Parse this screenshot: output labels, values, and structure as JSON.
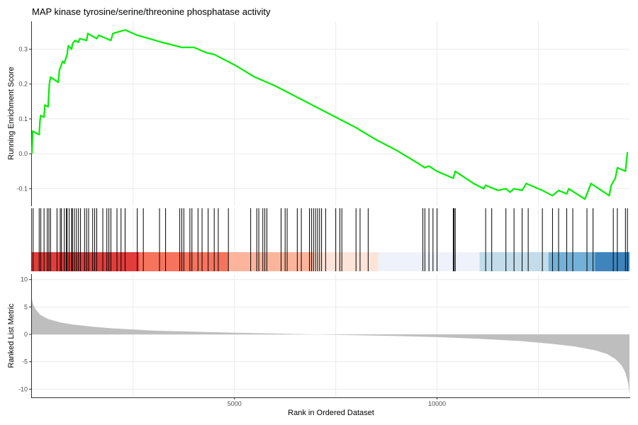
{
  "chart_data": {
    "type": "line",
    "title": "MAP kinase tyrosine/serine/threonine phosphatase activity",
    "xlabel": "Rank in Ordered Dataset",
    "xlim": [
      0,
      14750
    ],
    "x_ticks": [
      5000,
      10000
    ],
    "x_tick_labels": [
      "5000",
      "10000"
    ],
    "grid": true,
    "colors": {
      "es_line": "#00ee00",
      "hits": "#000000",
      "metric_fill": "#bebebe",
      "grid": "#ebebeb"
    },
    "panels": {
      "running_es": {
        "ylabel": "Running Enrichment Score",
        "ylim": [
          -0.15,
          0.38
        ],
        "y_ticks": [
          -0.1,
          0.0,
          0.1,
          0.2,
          0.3
        ],
        "y_tick_labels": [
          "-0.1",
          "0.0",
          "0.1",
          "0.2",
          "0.3"
        ],
        "points": [
          [
            0,
            0.0
          ],
          [
            20,
            0.065
          ],
          [
            180,
            0.055
          ],
          [
            200,
            0.095
          ],
          [
            220,
            0.11
          ],
          [
            300,
            0.105
          ],
          [
            320,
            0.14
          ],
          [
            400,
            0.135
          ],
          [
            430,
            0.2
          ],
          [
            460,
            0.22
          ],
          [
            650,
            0.205
          ],
          [
            680,
            0.24
          ],
          [
            760,
            0.265
          ],
          [
            800,
            0.26
          ],
          [
            870,
            0.285
          ],
          [
            900,
            0.31
          ],
          [
            980,
            0.3
          ],
          [
            1000,
            0.315
          ],
          [
            1060,
            0.325
          ],
          [
            1150,
            0.32
          ],
          [
            1180,
            0.33
          ],
          [
            1350,
            0.325
          ],
          [
            1380,
            0.345
          ],
          [
            1600,
            0.33
          ],
          [
            1650,
            0.34
          ],
          [
            1950,
            0.325
          ],
          [
            2000,
            0.345
          ],
          [
            2300,
            0.355
          ],
          [
            2600,
            0.34
          ],
          [
            3200,
            0.32
          ],
          [
            3700,
            0.305
          ],
          [
            4000,
            0.305
          ],
          [
            4300,
            0.29
          ],
          [
            4500,
            0.285
          ],
          [
            5000,
            0.255
          ],
          [
            5500,
            0.22
          ],
          [
            6000,
            0.195
          ],
          [
            6500,
            0.165
          ],
          [
            7000,
            0.135
          ],
          [
            7500,
            0.105
          ],
          [
            8000,
            0.075
          ],
          [
            8500,
            0.04
          ],
          [
            9000,
            0.01
          ],
          [
            9500,
            -0.025
          ],
          [
            9700,
            -0.04
          ],
          [
            9800,
            -0.035
          ],
          [
            10000,
            -0.05
          ],
          [
            10400,
            -0.07
          ],
          [
            10450,
            -0.05
          ],
          [
            10900,
            -0.085
          ],
          [
            11150,
            -0.1
          ],
          [
            11200,
            -0.09
          ],
          [
            11500,
            -0.105
          ],
          [
            11700,
            -0.1
          ],
          [
            11800,
            -0.11
          ],
          [
            11900,
            -0.1
          ],
          [
            12100,
            -0.105
          ],
          [
            12200,
            -0.085
          ],
          [
            12600,
            -0.105
          ],
          [
            12850,
            -0.12
          ],
          [
            13000,
            -0.105
          ],
          [
            13200,
            -0.115
          ],
          [
            13250,
            -0.1
          ],
          [
            13650,
            -0.13
          ],
          [
            13700,
            -0.115
          ],
          [
            13800,
            -0.085
          ],
          [
            14250,
            -0.12
          ],
          [
            14300,
            -0.09
          ],
          [
            14400,
            -0.07
          ],
          [
            14450,
            -0.04
          ],
          [
            14650,
            -0.05
          ],
          [
            14700,
            0.005
          ]
        ]
      },
      "hits": {
        "positions": [
          30,
          180,
          220,
          300,
          380,
          420,
          460,
          620,
          700,
          730,
          800,
          850,
          870,
          920,
          980,
          1000,
          1050,
          1100,
          1150,
          1200,
          1300,
          1350,
          1400,
          1500,
          1550,
          1600,
          1750,
          1850,
          1900,
          1950,
          2100,
          2200,
          2300,
          2600,
          2750,
          3150,
          3300,
          3650,
          3700,
          3750,
          3900,
          3950,
          4100,
          4200,
          4350,
          4500,
          4600,
          4850,
          5400,
          5550,
          5600,
          5700,
          5750,
          5800,
          6150,
          6250,
          6300,
          6550,
          6650,
          6850,
          6900,
          6950,
          7000,
          7050,
          7100,
          7150,
          7250,
          7500,
          7600,
          7650,
          8000,
          8100,
          8300,
          9650,
          9700,
          9800,
          9900,
          10000,
          10400,
          10420,
          10450,
          11200,
          11350,
          11700,
          11900,
          12100,
          12250,
          12600,
          12850,
          13000,
          13200,
          13350,
          13700,
          13850,
          14350,
          14450,
          14650,
          14700
        ],
        "color_bands": [
          {
            "from": 0,
            "to": 2650,
            "color": "#e03d3b"
          },
          {
            "from": 2650,
            "to": 4850,
            "color": "#f6735d"
          },
          {
            "from": 4850,
            "to": 6950,
            "color": "#fcb59c"
          },
          {
            "from": 6950,
            "to": 8550,
            "color": "#fde4d9"
          },
          {
            "from": 8550,
            "to": 11050,
            "color": "#eef3fb"
          },
          {
            "from": 11050,
            "to": 12750,
            "color": "#c2dcea"
          },
          {
            "from": 12750,
            "to": 13900,
            "color": "#74b1d8"
          },
          {
            "from": 13900,
            "to": 14750,
            "color": "#3f85bc"
          }
        ]
      },
      "ranked_metric": {
        "ylabel": "Ranked List Metric",
        "ylim": [
          -11.5,
          11
        ],
        "y_ticks": [
          -10,
          -5,
          0,
          5,
          10
        ],
        "y_tick_labels": [
          "-10",
          "-5",
          "0",
          "5",
          "10"
        ],
        "points": [
          [
            0,
            6.5
          ],
          [
            30,
            5.5
          ],
          [
            100,
            4.5
          ],
          [
            200,
            3.6
          ],
          [
            400,
            2.8
          ],
          [
            700,
            2.2
          ],
          [
            1000,
            1.8
          ],
          [
            1500,
            1.4
          ],
          [
            2000,
            1.1
          ],
          [
            2500,
            0.9
          ],
          [
            3000,
            0.7
          ],
          [
            4000,
            0.5
          ],
          [
            5000,
            0.3
          ],
          [
            6000,
            0.15
          ],
          [
            7000,
            0.0
          ],
          [
            8000,
            -0.15
          ],
          [
            9000,
            -0.3
          ],
          [
            10000,
            -0.5
          ],
          [
            11000,
            -0.8
          ],
          [
            12000,
            -1.2
          ],
          [
            12800,
            -1.7
          ],
          [
            13400,
            -2.2
          ],
          [
            13900,
            -2.9
          ],
          [
            14200,
            -3.6
          ],
          [
            14400,
            -4.5
          ],
          [
            14550,
            -5.6
          ],
          [
            14650,
            -7.0
          ],
          [
            14720,
            -9.0
          ],
          [
            14750,
            -10.8
          ]
        ]
      }
    }
  }
}
